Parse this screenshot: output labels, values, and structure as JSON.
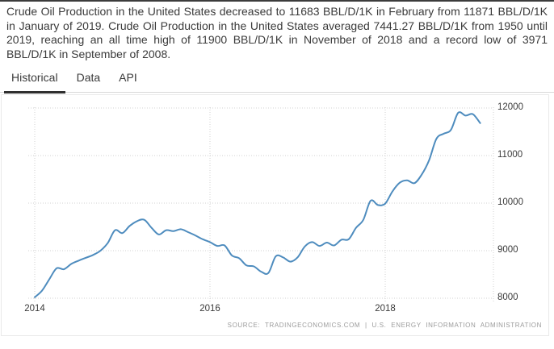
{
  "page": {
    "description": "Crude Oil Production in the United States decreased to 11683 BBL/D/1K in February from 11871 BBL/D/1K in January of 2019. Crude Oil Production in the United States averaged 7441.27 BBL/D/1K from 1950 until 2019, reaching an all time high of 11900 BBL/D/1K in November of 2018 and a record low of 3971 BBL/D/1K in September of 2008."
  },
  "tabs": [
    {
      "label": "Historical",
      "active": true
    },
    {
      "label": "Data",
      "active": false
    },
    {
      "label": "API",
      "active": false
    }
  ],
  "source_line": "SOURCE: TRADINGECONOMICS.COM | U.S. ENERGY INFORMATION ADMINISTRATION",
  "chart_data": {
    "type": "line",
    "unit": "BBL/D/1K",
    "line_color": "#4e8cbe",
    "grid_color": "#d0d0d0",
    "grid": "dotted",
    "legend": "none",
    "ylim": [
      8000,
      12000
    ],
    "y_ticks": [
      12000,
      11000,
      10000,
      9000,
      8000
    ],
    "x_ticks": [
      2014,
      2016,
      2018
    ],
    "x": [
      "2014-01",
      "2014-02",
      "2014-03",
      "2014-04",
      "2014-05",
      "2014-06",
      "2014-07",
      "2014-08",
      "2014-09",
      "2014-10",
      "2014-11",
      "2014-12",
      "2015-01",
      "2015-02",
      "2015-03",
      "2015-04",
      "2015-05",
      "2015-06",
      "2015-07",
      "2015-08",
      "2015-09",
      "2015-10",
      "2015-11",
      "2015-12",
      "2016-01",
      "2016-02",
      "2016-03",
      "2016-04",
      "2016-05",
      "2016-06",
      "2016-07",
      "2016-08",
      "2016-09",
      "2016-10",
      "2016-11",
      "2016-12",
      "2017-01",
      "2017-02",
      "2017-03",
      "2017-04",
      "2017-05",
      "2017-06",
      "2017-07",
      "2017-08",
      "2017-09",
      "2017-10",
      "2017-11",
      "2017-12",
      "2018-01",
      "2018-02",
      "2018-03",
      "2018-04",
      "2018-05",
      "2018-06",
      "2018-07",
      "2018-08",
      "2018-09",
      "2018-10",
      "2018-11",
      "2018-12",
      "2019-01",
      "2019-02"
    ],
    "values": [
      8020,
      8160,
      8400,
      8630,
      8610,
      8720,
      8790,
      8850,
      8910,
      9000,
      9160,
      9430,
      9370,
      9520,
      9620,
      9650,
      9480,
      9340,
      9430,
      9410,
      9450,
      9390,
      9320,
      9240,
      9180,
      9100,
      9110,
      8900,
      8840,
      8690,
      8670,
      8560,
      8530,
      8880,
      8860,
      8770,
      8860,
      9090,
      9180,
      9100,
      9170,
      9110,
      9230,
      9240,
      9480,
      9650,
      10050,
      9960,
      9990,
      10250,
      10430,
      10480,
      10420,
      10600,
      10900,
      11350,
      11460,
      11540,
      11900,
      11840,
      11871,
      11683
    ]
  }
}
